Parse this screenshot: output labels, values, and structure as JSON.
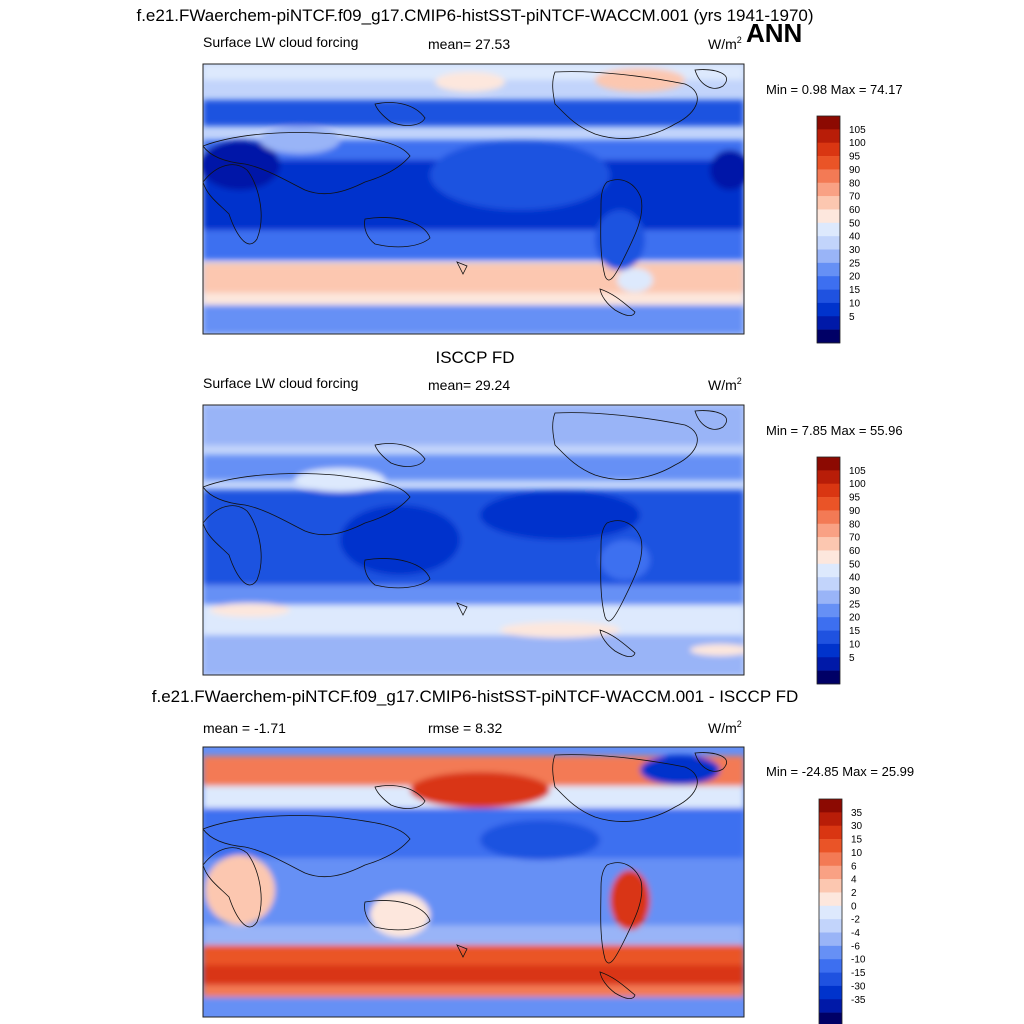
{
  "figure": {
    "title": "f.e21.FWaerchem-piNTCF.f09_g17.CMIP6-histSST-piNTCF-WACCM.001 (yrs 1941-1970)",
    "season": "ANN",
    "units_prefix": "W/m",
    "units_exp": "2"
  },
  "panels": [
    {
      "heading": "",
      "variable": "Surface LW cloud forcing",
      "stat1": "mean=  27.53",
      "stat2": "",
      "minmax": "Min =   0.98 Max =  74.17",
      "colorbar_labels": [
        "105",
        "100",
        "95",
        "90",
        "80",
        "70",
        "60",
        "50",
        "40",
        "30",
        "25",
        "20",
        "15",
        "10",
        "5"
      ],
      "colors": [
        "#000066",
        "#0019a8",
        "#0033cc",
        "#1f52e0",
        "#3d6ff0",
        "#6690f5",
        "#99b4f7",
        "#c2d4fb",
        "#dde9fd",
        "#fde7dd",
        "#fcc7b0",
        "#f9a184",
        "#f37a55",
        "#ea5427",
        "#d93612",
        "#b81d08",
        "#8c0a02"
      ],
      "chart_data": {
        "type": "heatmap",
        "title": "Surface LW cloud forcing",
        "xlabel": "",
        "ylabel": "",
        "units": "W/m2",
        "mean": 27.53,
        "min": 0.98,
        "max": 74.17,
        "contour_levels": [
          5,
          10,
          15,
          20,
          25,
          30,
          40,
          50,
          60,
          70,
          80,
          90,
          95,
          100,
          105
        ]
      }
    },
    {
      "heading": "ISCCP FD",
      "variable": "Surface LW cloud forcing",
      "stat1": "mean=  29.24",
      "stat2": "",
      "minmax": "Min =   7.85 Max =  55.96",
      "colorbar_labels": [
        "105",
        "100",
        "95",
        "90",
        "80",
        "70",
        "60",
        "50",
        "40",
        "30",
        "25",
        "20",
        "15",
        "10",
        "5"
      ],
      "colors": [
        "#000066",
        "#0019a8",
        "#0033cc",
        "#1f52e0",
        "#3d6ff0",
        "#6690f5",
        "#99b4f7",
        "#c2d4fb",
        "#dde9fd",
        "#fde7dd",
        "#fcc7b0",
        "#f9a184",
        "#f37a55",
        "#ea5427",
        "#d93612",
        "#b81d08",
        "#8c0a02"
      ],
      "chart_data": {
        "type": "heatmap",
        "title": "Surface LW cloud forcing",
        "xlabel": "",
        "ylabel": "",
        "units": "W/m2",
        "mean": 29.24,
        "min": 7.85,
        "max": 55.96,
        "contour_levels": [
          5,
          10,
          15,
          20,
          25,
          30,
          40,
          50,
          60,
          70,
          80,
          90,
          95,
          100,
          105
        ]
      }
    },
    {
      "heading": "f.e21.FWaerchem-piNTCF.f09_g17.CMIP6-histSST-piNTCF-WACCM.001 - ISCCP FD",
      "variable": "",
      "stat1": "mean =  -1.71",
      "stat2": "rmse =   8.32",
      "minmax": "Min = -24.85 Max =  25.99",
      "colorbar_labels": [
        "35",
        "30",
        "15",
        "10",
        "6",
        "4",
        "2",
        "0",
        "-2",
        "-4",
        "-6",
        "-10",
        "-15",
        "-30",
        "-35"
      ],
      "colors": [
        "#000066",
        "#0019a8",
        "#0033cc",
        "#1f52e0",
        "#3d6ff0",
        "#6690f5",
        "#99b4f7",
        "#c2d4fb",
        "#dde9fd",
        "#fde7dd",
        "#fcc7b0",
        "#f9a184",
        "#f37a55",
        "#ea5427",
        "#d93612",
        "#b81d08",
        "#8c0a02"
      ],
      "chart_data": {
        "type": "heatmap",
        "title": "f.e21.FWaerchem-piNTCF.f09_g17.CMIP6-histSST-piNTCF-WACCM.001 - ISCCP FD",
        "xlabel": "",
        "ylabel": "",
        "units": "W/m2",
        "mean": -1.71,
        "rmse": 8.32,
        "min": -24.85,
        "max": 25.99,
        "contour_levels": [
          -35,
          -30,
          -15,
          -10,
          -6,
          -4,
          -2,
          0,
          2,
          4,
          6,
          10,
          15,
          30,
          35
        ]
      }
    }
  ]
}
